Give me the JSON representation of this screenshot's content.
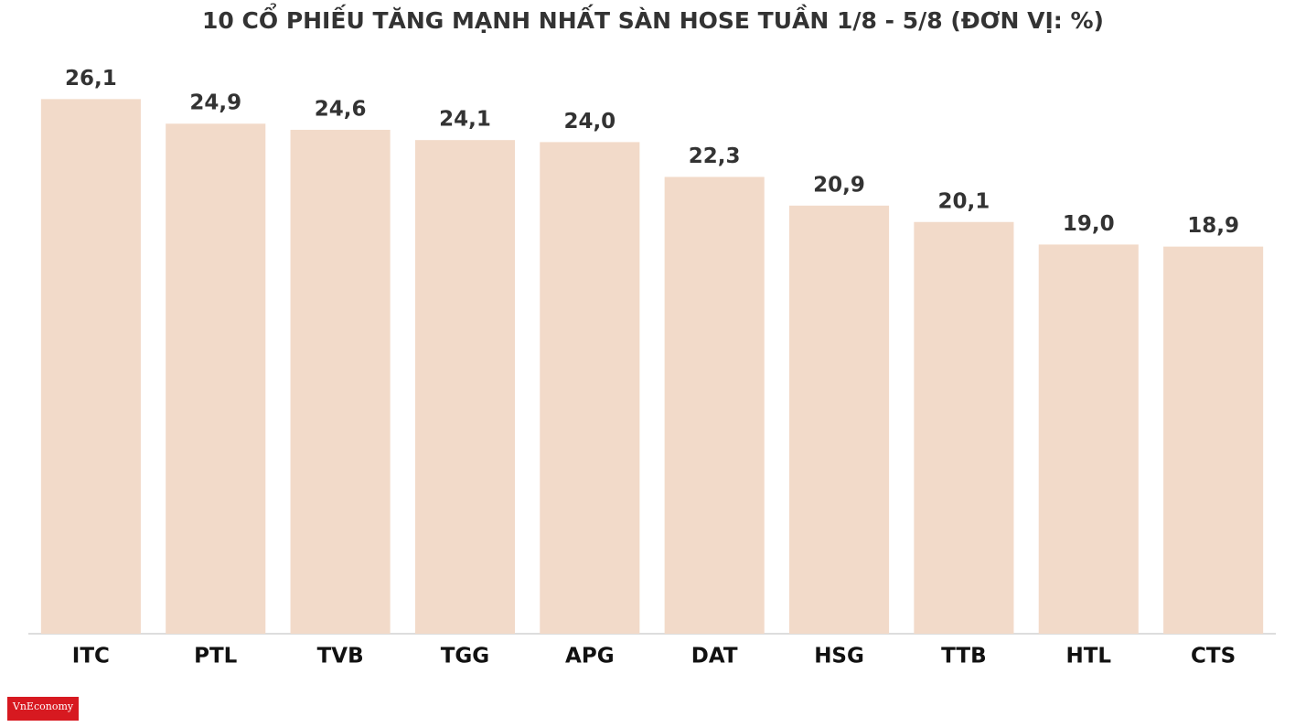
{
  "chart_data": {
    "type": "bar",
    "title": "10 CỔ PHIẾU TĂNG MẠNH NHẤT SÀN HOSE TUẦN 1/8 - 5/8 (ĐƠN VỊ: %)",
    "categories": [
      "ITC",
      "PTL",
      "TVB",
      "TGG",
      "APG",
      "DAT",
      "HSG",
      "TTB",
      "HTL",
      "CTS"
    ],
    "values": [
      26.1,
      24.9,
      24.6,
      24.1,
      24.0,
      22.3,
      20.9,
      20.1,
      19.0,
      18.9
    ],
    "value_labels": [
      "26,1",
      "24,9",
      "24,6",
      "24,1",
      "24,0",
      "22,3",
      "20,9",
      "20,1",
      "19,0",
      "18,9"
    ],
    "color": "#f2dac9",
    "ylim": [
      0,
      30
    ]
  },
  "logo": "VnEconomy"
}
